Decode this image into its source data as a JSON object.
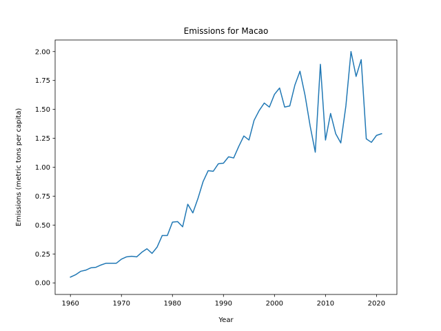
{
  "chart_data": {
    "type": "line",
    "title": "Emissions for Macao",
    "xlabel": "Year",
    "ylabel": "Emissions (metric tons per capita)",
    "xlim": [
      1957,
      2024
    ],
    "ylim": [
      -0.1,
      2.1
    ],
    "x_ticks": [
      1960,
      1970,
      1980,
      1990,
      2000,
      2010,
      2020
    ],
    "y_ticks": [
      0.0,
      0.25,
      0.5,
      0.75,
      1.0,
      1.25,
      1.5,
      1.75,
      2.0
    ],
    "y_tick_labels": [
      "0.00",
      "0.25",
      "0.50",
      "0.75",
      "1.00",
      "1.25",
      "1.50",
      "1.75",
      "2.00"
    ],
    "grid": false,
    "series": [
      {
        "color": "#1f77b4",
        "x": [
          1960,
          1961,
          1962,
          1963,
          1964,
          1965,
          1966,
          1967,
          1968,
          1969,
          1970,
          1971,
          1972,
          1973,
          1974,
          1975,
          1976,
          1977,
          1978,
          1979,
          1980,
          1981,
          1982,
          1983,
          1984,
          1985,
          1986,
          1987,
          1988,
          1989,
          1990,
          1991,
          1992,
          1993,
          1994,
          1995,
          1996,
          1997,
          1998,
          1999,
          2000,
          2001,
          2002,
          2003,
          2004,
          2005,
          2006,
          2007,
          2008,
          2009,
          2010,
          2011,
          2012,
          2013,
          2014,
          2015,
          2016,
          2017,
          2018,
          2019,
          2020,
          2021
        ],
        "y": [
          0.05,
          0.07,
          0.1,
          0.11,
          0.13,
          0.135,
          0.155,
          0.17,
          0.17,
          0.17,
          0.205,
          0.225,
          0.23,
          0.225,
          0.265,
          0.295,
          0.255,
          0.31,
          0.41,
          0.41,
          0.525,
          0.53,
          0.485,
          0.68,
          0.605,
          0.73,
          0.875,
          0.97,
          0.965,
          1.03,
          1.035,
          1.09,
          1.08,
          1.18,
          1.27,
          1.235,
          1.405,
          1.49,
          1.555,
          1.52,
          1.63,
          1.685,
          1.52,
          1.53,
          1.71,
          1.83,
          1.62,
          1.355,
          1.13,
          1.89,
          1.235,
          1.465,
          1.29,
          1.21,
          1.53,
          2.0,
          1.785,
          1.93,
          1.245,
          1.215,
          1.275,
          1.29
        ]
      }
    ]
  }
}
